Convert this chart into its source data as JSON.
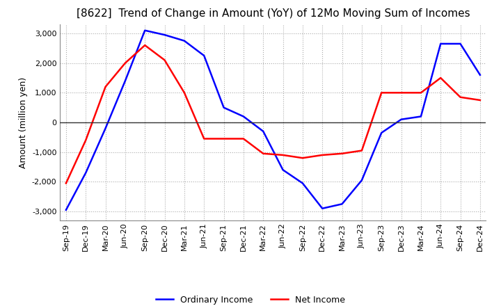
{
  "title": "[8622]  Trend of Change in Amount (YoY) of 12Mo Moving Sum of Incomes",
  "ylabel": "Amount (million yen)",
  "ylim": [
    -3300,
    3300
  ],
  "yticks": [
    -3000,
    -2000,
    -1000,
    0,
    1000,
    2000,
    3000
  ],
  "x_labels": [
    "Sep-19",
    "Dec-19",
    "Mar-20",
    "Jun-20",
    "Sep-20",
    "Dec-20",
    "Mar-21",
    "Jun-21",
    "Sep-21",
    "Dec-21",
    "Mar-22",
    "Jun-22",
    "Sep-22",
    "Dec-22",
    "Mar-23",
    "Jun-23",
    "Sep-23",
    "Dec-23",
    "Mar-24",
    "Jun-24",
    "Sep-24",
    "Dec-24"
  ],
  "ordinary_income": [
    -2950,
    -1700,
    -200,
    1400,
    3100,
    2950,
    2750,
    2250,
    500,
    200,
    -300,
    -1600,
    -2050,
    -2900,
    -2750,
    -1950,
    -350,
    100,
    200,
    2650,
    2650,
    1600
  ],
  "net_income": [
    -2050,
    -600,
    1200,
    2000,
    2600,
    2100,
    1000,
    -550,
    -550,
    -550,
    -1050,
    -1100,
    -1200,
    -1100,
    -1050,
    -950,
    1000,
    1000,
    1000,
    1500,
    850,
    750
  ],
  "ordinary_income_color": "#0000ff",
  "net_income_color": "#ff0000",
  "line_width": 1.8,
  "grid_color": "#aaaaaa",
  "background_color": "#ffffff",
  "title_fontsize": 11,
  "label_fontsize": 9,
  "tick_fontsize": 8,
  "legend_fontsize": 9
}
